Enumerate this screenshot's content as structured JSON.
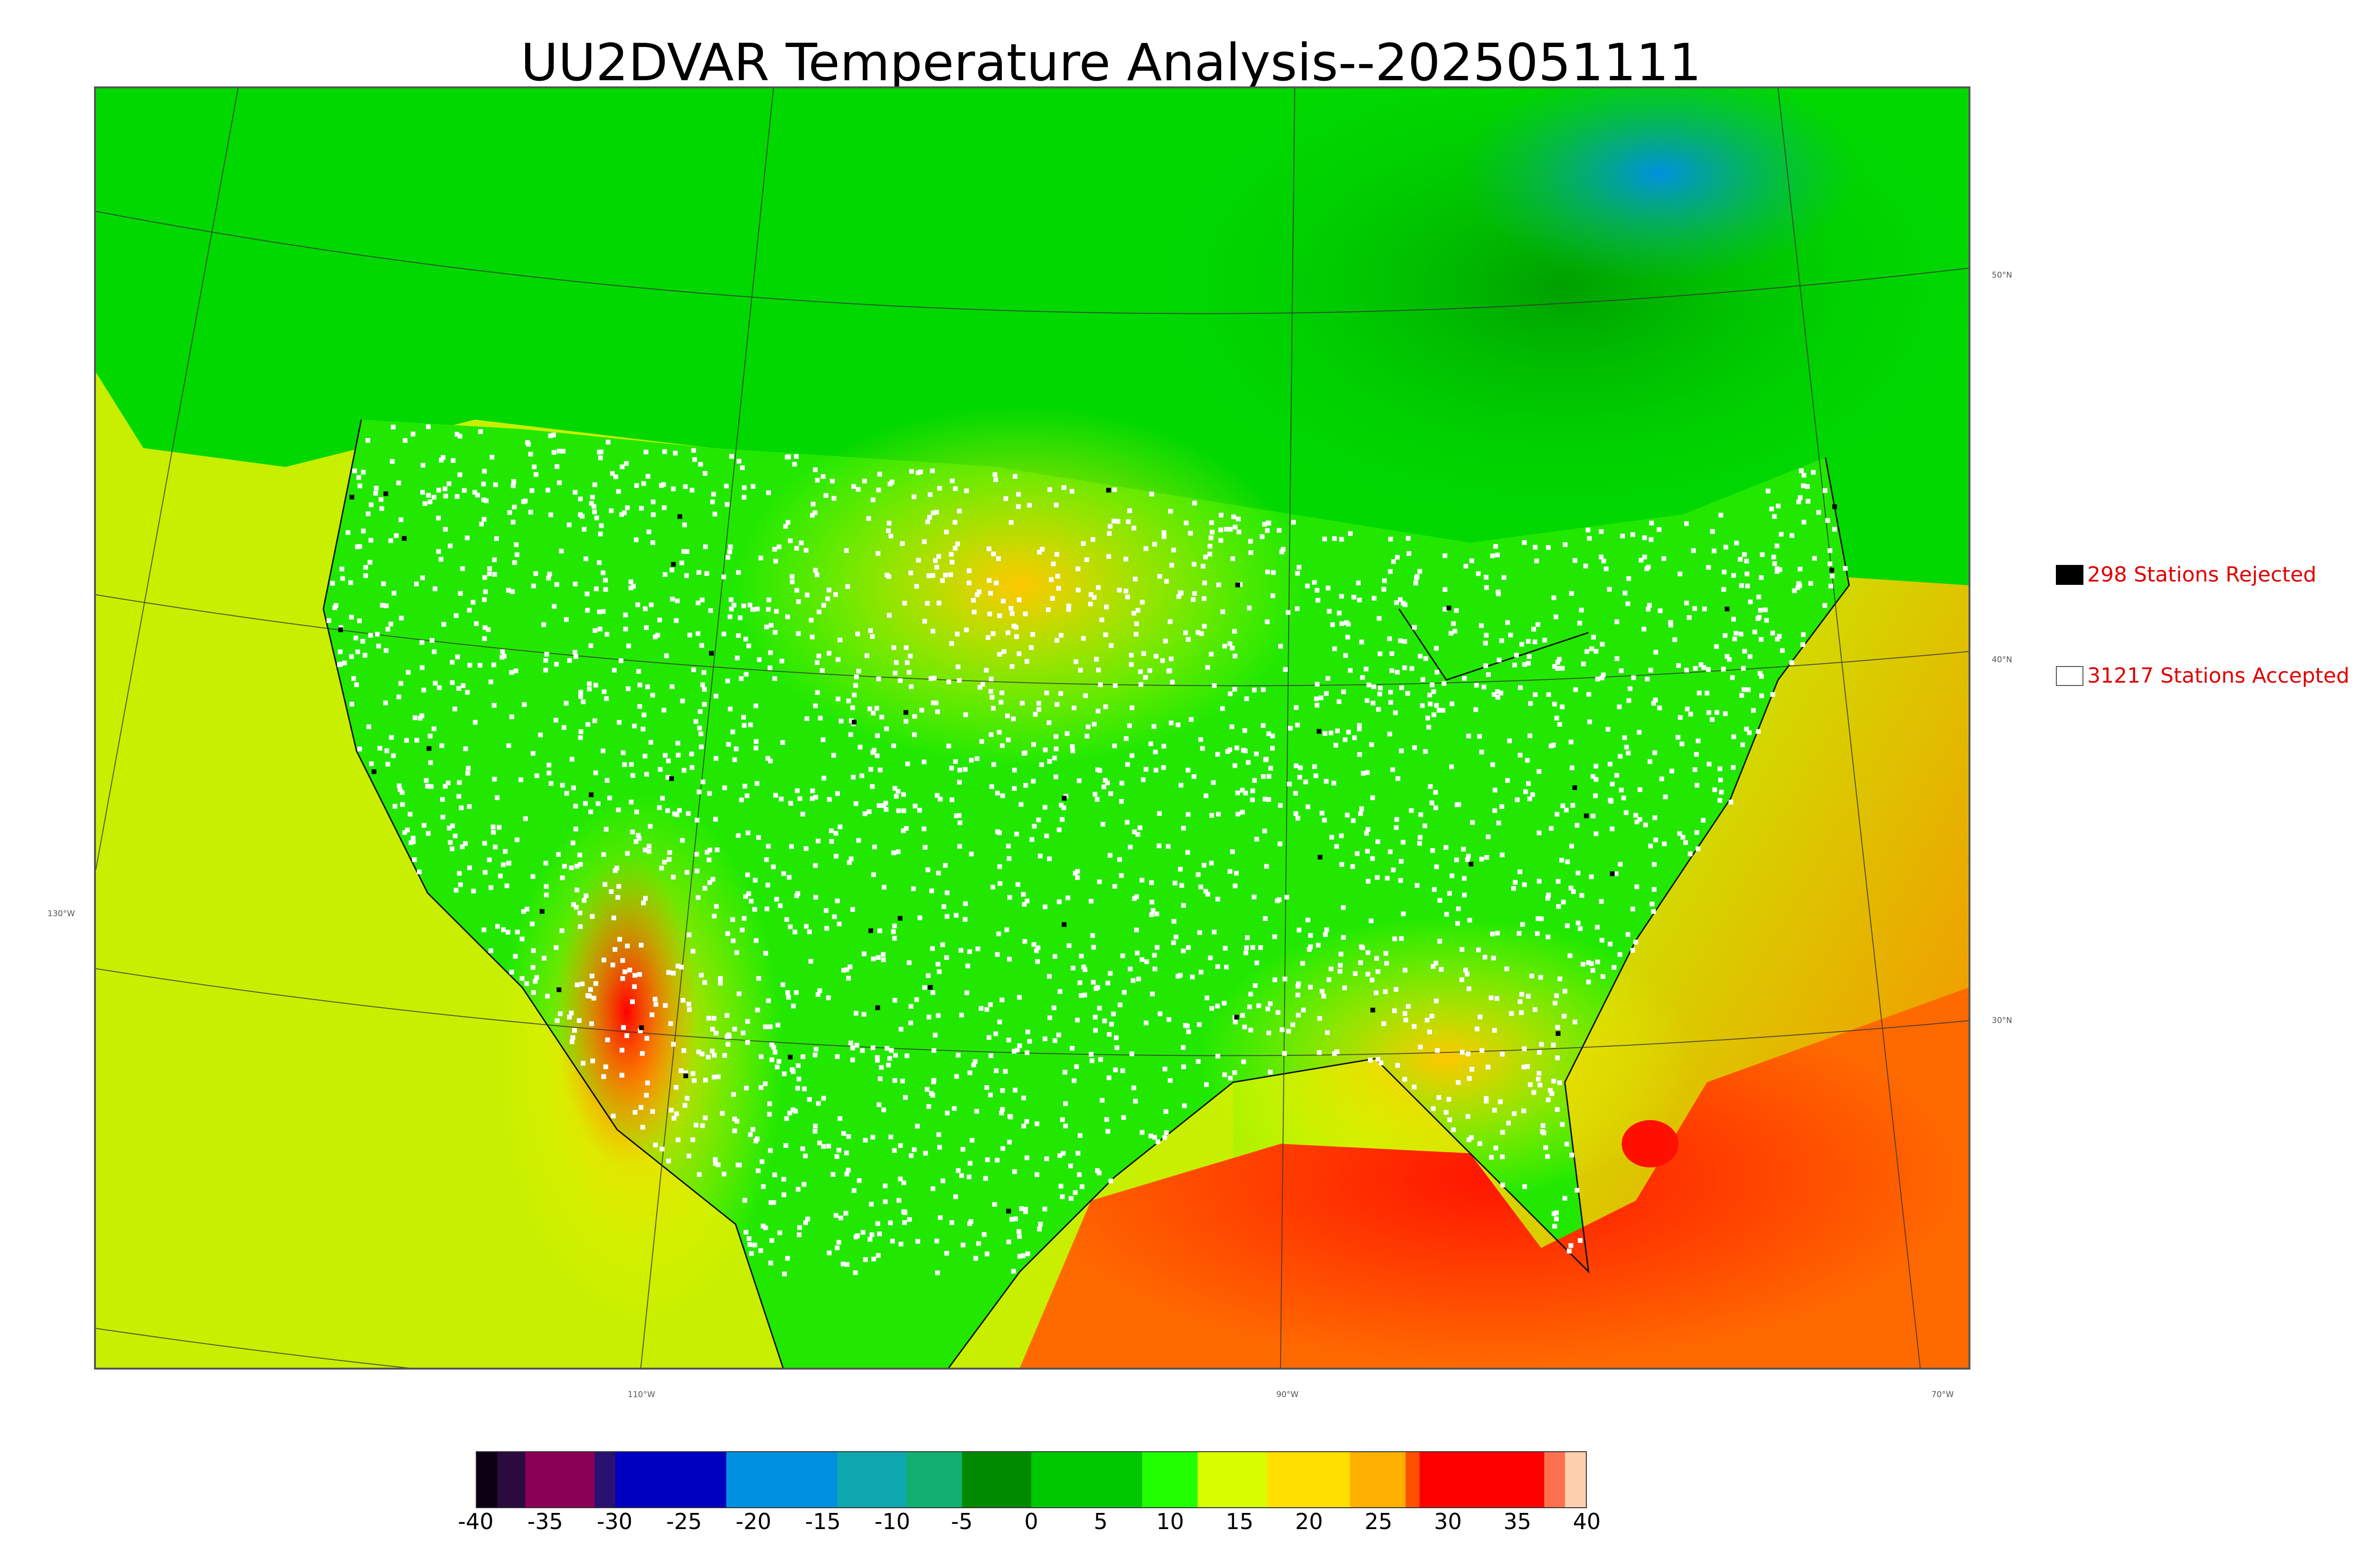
{
  "title": "UU2DVAR Temperature Analysis--2025051111",
  "map": {
    "lat_labels": [
      "50°N",
      "40°N",
      "30°N"
    ],
    "lon_label_left": "130°W",
    "lon_labels_bottom": [
      "110°W",
      "90°W",
      "70°W"
    ]
  },
  "legend": {
    "rejected": {
      "label": "298 Stations Rejected",
      "color": "#000000",
      "count": 298
    },
    "accepted": {
      "label": "31217 Stations Accepted",
      "color": "#ffffff",
      "count": 31217
    }
  },
  "colorbar": {
    "tick_labels": [
      "-40",
      "-35",
      "-30",
      "-25",
      "-20",
      "-15",
      "-10",
      "-5",
      "0",
      "5",
      "10",
      "15",
      "20",
      "25",
      "30",
      "35",
      "40"
    ],
    "range": [
      -40,
      40
    ],
    "stops": [
      {
        "value": -40,
        "color": "#0c0015"
      },
      {
        "value": -38.5,
        "color": "#2a0a3f"
      },
      {
        "value": -36.5,
        "color": "#8a0055"
      },
      {
        "value": -31.5,
        "color": "#2a1070"
      },
      {
        "value": -30,
        "color": "#0000c0"
      },
      {
        "value": -22,
        "color": "#0090e0"
      },
      {
        "value": -14,
        "color": "#10a8b0"
      },
      {
        "value": -9,
        "color": "#12b070"
      },
      {
        "value": -5,
        "color": "#008a00"
      },
      {
        "value": 0,
        "color": "#00c800"
      },
      {
        "value": 8,
        "color": "#22ff00"
      },
      {
        "value": 12,
        "color": "#d8ff00"
      },
      {
        "value": 17,
        "color": "#ffe000"
      },
      {
        "value": 23,
        "color": "#ffb000"
      },
      {
        "value": 27,
        "color": "#ff5000"
      },
      {
        "value": 28,
        "color": "#ff0000"
      },
      {
        "value": 35,
        "color": "#ff0000"
      },
      {
        "value": 37,
        "color": "#ff7050"
      },
      {
        "value": 38.5,
        "color": "#ffd0b0"
      },
      {
        "value": 40,
        "color": "#c8c8c8"
      }
    ]
  },
  "colors": {
    "background": "#ffffff",
    "ocean_west": "#c8ef00",
    "ocean_gulf": "#ff3000",
    "land_cool": "#00d000",
    "land_warm": "#ffd000",
    "legend_text": "#e00000"
  }
}
